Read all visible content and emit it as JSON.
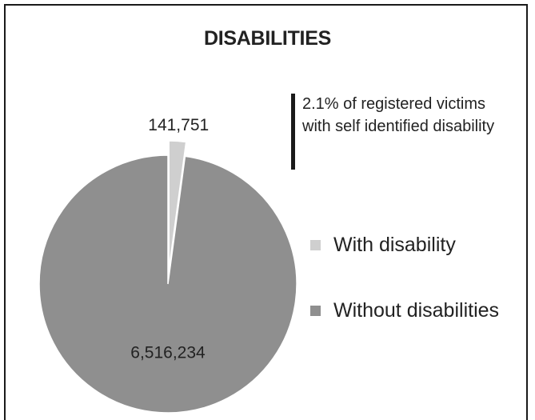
{
  "chart_data": {
    "type": "pie",
    "title": "DISABILITIES",
    "categories": [
      "With disability",
      "Without disabilities"
    ],
    "values": [
      141751,
      6516234
    ],
    "data_labels": [
      "141,751",
      "6,516,234"
    ],
    "colors": [
      "#cfcfcf",
      "#8f8f8f"
    ],
    "legend_position": "right",
    "annotation": "2.1% of registered victims with self identified disability"
  }
}
